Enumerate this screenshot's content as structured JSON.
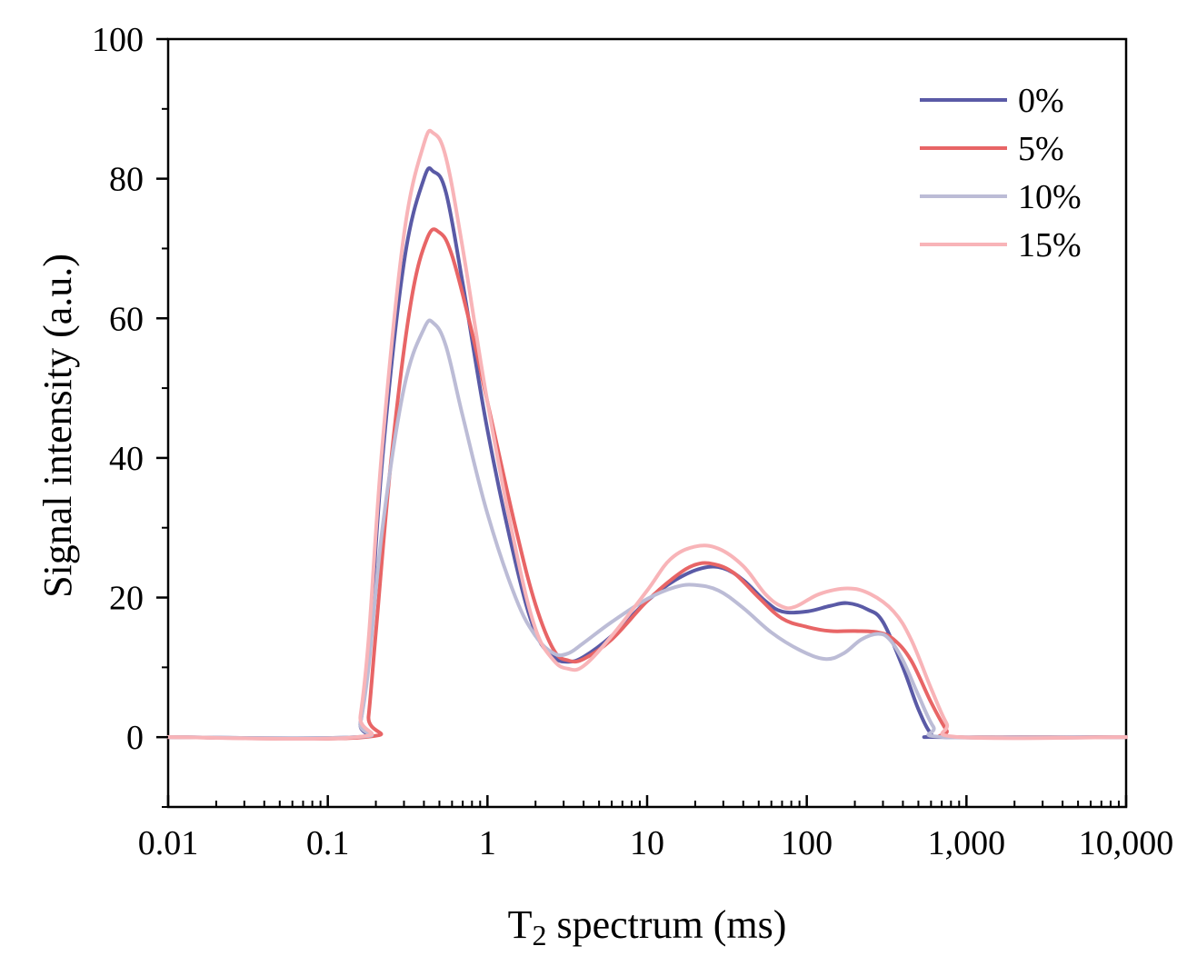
{
  "chart_data": {
    "type": "line",
    "title": "",
    "xlabel_main": "T",
    "xlabel_sub": "2",
    "xlabel_rest": " spectrum (ms)",
    "ylabel": "Signal intensity (a.u.)",
    "xscale": "log",
    "xlim": [
      0.01,
      10000
    ],
    "ylim": [
      -10,
      100
    ],
    "x_ticks": [
      0.01,
      0.1,
      1,
      10,
      100,
      1000,
      10000
    ],
    "x_tick_labels": [
      "0.01",
      "0.1",
      "1",
      "10",
      "100",
      "1,000",
      "10,000"
    ],
    "y_ticks": [
      0,
      20,
      40,
      60,
      80,
      100
    ],
    "y_tick_labels": [
      "0",
      "20",
      "40",
      "60",
      "80",
      "100"
    ],
    "legend_position": "top-right",
    "series": [
      {
        "name": "0%",
        "color": "#5a5aa6",
        "points": [
          [
            0.01,
            0
          ],
          [
            0.15,
            0
          ],
          [
            0.16,
            2
          ],
          [
            0.18,
            12
          ],
          [
            0.22,
            40
          ],
          [
            0.3,
            68
          ],
          [
            0.4,
            80
          ],
          [
            0.46,
            81
          ],
          [
            0.55,
            78
          ],
          [
            0.7,
            65
          ],
          [
            1,
            44
          ],
          [
            1.5,
            25
          ],
          [
            2,
            15
          ],
          [
            2.6,
            11.5
          ],
          [
            3.2,
            10.8
          ],
          [
            4,
            11.5
          ],
          [
            6,
            14.5
          ],
          [
            10,
            19.5
          ],
          [
            15,
            22.5
          ],
          [
            22,
            24.2
          ],
          [
            30,
            24.2
          ],
          [
            40,
            22.5
          ],
          [
            55,
            19.5
          ],
          [
            70,
            18
          ],
          [
            100,
            18
          ],
          [
            140,
            18.8
          ],
          [
            180,
            19.2
          ],
          [
            240,
            18.3
          ],
          [
            300,
            16.5
          ],
          [
            400,
            10
          ],
          [
            500,
            4
          ],
          [
            600,
            0.5
          ],
          [
            700,
            0
          ],
          [
            10000,
            0
          ]
        ]
      },
      {
        "name": "5%",
        "color": "#e86566",
        "points": [
          [
            0.01,
            0
          ],
          [
            0.17,
            0
          ],
          [
            0.18,
            3
          ],
          [
            0.2,
            15
          ],
          [
            0.25,
            40
          ],
          [
            0.33,
            62
          ],
          [
            0.42,
            71.5
          ],
          [
            0.5,
            72.3
          ],
          [
            0.6,
            69
          ],
          [
            0.8,
            58
          ],
          [
            1,
            48
          ],
          [
            1.5,
            30
          ],
          [
            2,
            19
          ],
          [
            2.6,
            12.5
          ],
          [
            3.2,
            11
          ],
          [
            4,
            11.2
          ],
          [
            6,
            14
          ],
          [
            10,
            19.5
          ],
          [
            15,
            23
          ],
          [
            20,
            24.7
          ],
          [
            26,
            24.8
          ],
          [
            35,
            23.5
          ],
          [
            50,
            20
          ],
          [
            70,
            17
          ],
          [
            100,
            15.8
          ],
          [
            140,
            15.2
          ],
          [
            200,
            15.2
          ],
          [
            280,
            15
          ],
          [
            350,
            14
          ],
          [
            450,
            11
          ],
          [
            600,
            5
          ],
          [
            750,
            1
          ],
          [
            850,
            0
          ],
          [
            10000,
            0
          ]
        ]
      },
      {
        "name": "10%",
        "color": "#bcbcd6",
        "points": [
          [
            0.01,
            0
          ],
          [
            0.15,
            0
          ],
          [
            0.16,
            2
          ],
          [
            0.18,
            10
          ],
          [
            0.22,
            30
          ],
          [
            0.3,
            50
          ],
          [
            0.4,
            58.5
          ],
          [
            0.46,
            59.3
          ],
          [
            0.55,
            56
          ],
          [
            0.7,
            46
          ],
          [
            1,
            32
          ],
          [
            1.5,
            20
          ],
          [
            2,
            14.5
          ],
          [
            2.6,
            12
          ],
          [
            3.2,
            12
          ],
          [
            4,
            13.5
          ],
          [
            6,
            16.5
          ],
          [
            10,
            19.8
          ],
          [
            15,
            21.5
          ],
          [
            20,
            21.8
          ],
          [
            28,
            21
          ],
          [
            40,
            18.5
          ],
          [
            60,
            15
          ],
          [
            90,
            12.5
          ],
          [
            130,
            11.2
          ],
          [
            170,
            12
          ],
          [
            220,
            14
          ],
          [
            280,
            14.8
          ],
          [
            330,
            14
          ],
          [
            400,
            11
          ],
          [
            500,
            6
          ],
          [
            620,
            1.5
          ],
          [
            750,
            0
          ],
          [
            10000,
            0
          ]
        ]
      },
      {
        "name": "15%",
        "color": "#f8b4b8",
        "points": [
          [
            0.01,
            0
          ],
          [
            0.15,
            0
          ],
          [
            0.16,
            3
          ],
          [
            0.18,
            14
          ],
          [
            0.22,
            42
          ],
          [
            0.3,
            72
          ],
          [
            0.4,
            85
          ],
          [
            0.46,
            86.5
          ],
          [
            0.55,
            83
          ],
          [
            0.7,
            70
          ],
          [
            1,
            48
          ],
          [
            1.5,
            27
          ],
          [
            2,
            15.5
          ],
          [
            2.6,
            11
          ],
          [
            3.2,
            9.8
          ],
          [
            4,
            10.2
          ],
          [
            6,
            14.5
          ],
          [
            10,
            21
          ],
          [
            14,
            25.5
          ],
          [
            20,
            27.3
          ],
          [
            28,
            27
          ],
          [
            40,
            24.5
          ],
          [
            55,
            20.5
          ],
          [
            70,
            18.7
          ],
          [
            85,
            18.7
          ],
          [
            120,
            20.5
          ],
          [
            180,
            21.3
          ],
          [
            250,
            20.5
          ],
          [
            350,
            18
          ],
          [
            450,
            14
          ],
          [
            600,
            7
          ],
          [
            750,
            2
          ],
          [
            900,
            0
          ],
          [
            10000,
            0
          ]
        ]
      }
    ]
  }
}
